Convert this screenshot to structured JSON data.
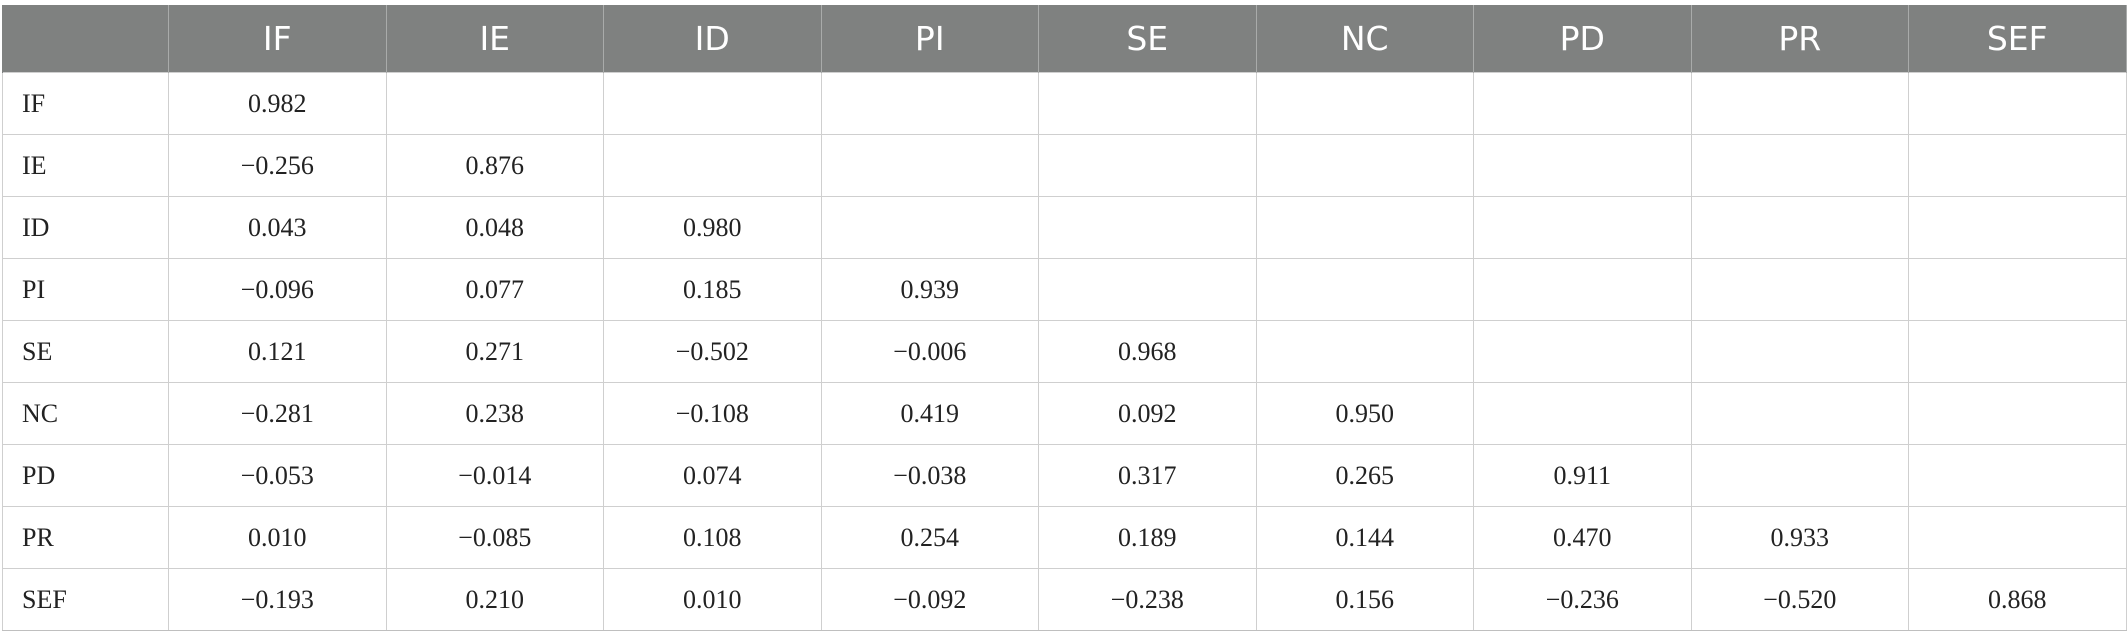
{
  "table": {
    "headers": [
      "",
      "IF",
      "IE",
      "ID",
      "PI",
      "SE",
      "NC",
      "PD",
      "PR",
      "SEF"
    ],
    "rows": [
      {
        "label": "IF",
        "cells": [
          "0.982",
          "",
          "",
          "",
          "",
          "",
          "",
          "",
          ""
        ]
      },
      {
        "label": "IE",
        "cells": [
          "−0.256",
          "0.876",
          "",
          "",
          "",
          "",
          "",
          "",
          ""
        ]
      },
      {
        "label": "ID",
        "cells": [
          "0.043",
          "0.048",
          "0.980",
          "",
          "",
          "",
          "",
          "",
          ""
        ]
      },
      {
        "label": "PI",
        "cells": [
          "−0.096",
          "0.077",
          "0.185",
          "0.939",
          "",
          "",
          "",
          "",
          ""
        ]
      },
      {
        "label": "SE",
        "cells": [
          "0.121",
          "0.271",
          "−0.502",
          "−0.006",
          "0.968",
          "",
          "",
          "",
          ""
        ]
      },
      {
        "label": "NC",
        "cells": [
          "−0.281",
          "0.238",
          "−0.108",
          "0.419",
          "0.092",
          "0.950",
          "",
          "",
          ""
        ]
      },
      {
        "label": "PD",
        "cells": [
          "−0.053",
          "−0.014",
          "0.074",
          "−0.038",
          "0.317",
          "0.265",
          "0.911",
          "",
          ""
        ]
      },
      {
        "label": "PR",
        "cells": [
          "0.010",
          "−0.085",
          "0.108",
          "0.254",
          "0.189",
          "0.144",
          "0.470",
          "0.933",
          ""
        ]
      },
      {
        "label": "SEF",
        "cells": [
          "−0.193",
          "0.210",
          "0.010",
          "−0.092",
          "−0.238",
          "0.156",
          "−0.236",
          "−0.520",
          "0.868"
        ]
      }
    ]
  },
  "colors": {
    "header_bg": "#7f8180",
    "header_text": "#ffffff",
    "grid_line": "#cfcfcf"
  }
}
